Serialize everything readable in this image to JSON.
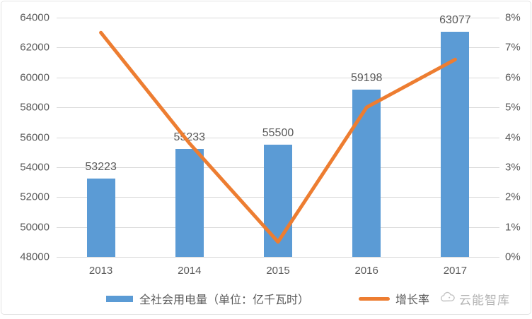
{
  "chart_data": {
    "type": "bar",
    "subtype": "combo-bar-line",
    "title": "",
    "categories": [
      "2013",
      "2014",
      "2015",
      "2016",
      "2017"
    ],
    "series": [
      {
        "name": "全社会用电量（单位：亿千瓦时）",
        "type": "bar",
        "axis": "left",
        "values": [
          53223,
          55233,
          55500,
          59198,
          63077
        ],
        "data_labels": [
          "53223",
          "55233",
          "55500",
          "59198",
          "63077"
        ],
        "color": "#5B9BD5"
      },
      {
        "name": "增长率",
        "type": "line",
        "axis": "right",
        "values": [
          7.5,
          3.8,
          0.5,
          5.0,
          6.6
        ],
        "unit": "%",
        "color": "#ED7D31"
      }
    ],
    "left_axis": {
      "min": 48000,
      "max": 64000,
      "step": 2000,
      "tick_labels": [
        "48000",
        "50000",
        "52000",
        "54000",
        "56000",
        "58000",
        "60000",
        "62000",
        "64000"
      ]
    },
    "right_axis": {
      "min": 0,
      "max": 8,
      "step": 1,
      "tick_labels": [
        "0%",
        "1%",
        "2%",
        "3%",
        "4%",
        "5%",
        "6%",
        "7%",
        "8%"
      ]
    },
    "grid": true,
    "legend_position": "bottom"
  },
  "legend": {
    "bar_label": "全社会用电量（单位：亿千瓦时）",
    "line_label": "增长率"
  },
  "watermark": {
    "text": "云能智库",
    "icon": "cloud-logo"
  },
  "colors": {
    "bar": "#5B9BD5",
    "line": "#ED7D31",
    "grid": "#D9D9D9",
    "tick_text": "#595959",
    "watermark_text": "#B3B3B3"
  }
}
